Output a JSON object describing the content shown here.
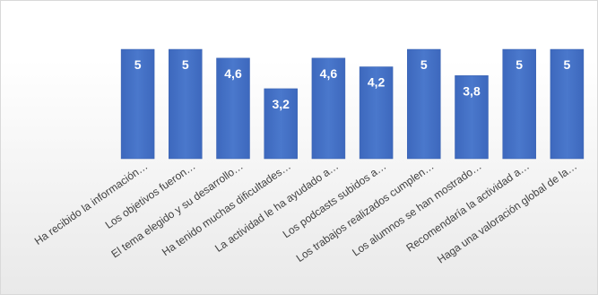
{
  "chart_data": {
    "type": "bar",
    "categories": [
      "Ha recibido la información…",
      "Los objetivos fueron…",
      "El tema elegido y su desarrollo…",
      "Ha tenido muchas dificultades…",
      "La actividad le ha ayudado a…",
      "Los podcasts subidos a…",
      "Los trabajos realizados cumplen…",
      "Los alumnos se han mostrado…",
      "Recomendaría la actividad a…",
      "Haga una valoración global de la…"
    ],
    "values": [
      5,
      5,
      4.6,
      3.2,
      4.6,
      4.2,
      5,
      3.8,
      5,
      5
    ],
    "value_labels": [
      "5",
      "5",
      "4,6",
      "3,2",
      "4,6",
      "4,2",
      "5",
      "3,8",
      "5",
      "5"
    ],
    "ylim": [
      0,
      5
    ],
    "grid": false,
    "legend": "none",
    "colors": {
      "bar": "#4472c4",
      "bar_dark": "#3a62b0",
      "label_text": "#ffffff",
      "axis_text": "#404040"
    }
  }
}
